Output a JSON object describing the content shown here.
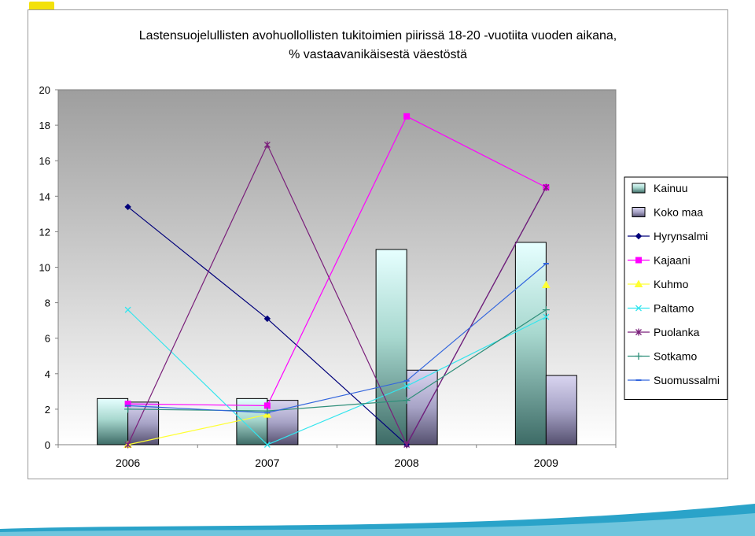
{
  "chart_data": {
    "type": "bar",
    "title_line1": "Lastensuojelullisten avohuollollisten tukitoimien piirissä 18-20 -vuotiita vuoden aikana,",
    "title_line2": "% vastaavanikäisestä väestöstä",
    "categories": [
      "2006",
      "2007",
      "2008",
      "2009"
    ],
    "ylim": [
      0,
      20
    ],
    "yticks": [
      0,
      2,
      4,
      6,
      8,
      10,
      12,
      14,
      16,
      18,
      20
    ],
    "legend_position": "right",
    "bar_series": [
      {
        "name": "Kainuu",
        "values": [
          2.6,
          2.6,
          11.0,
          11.4
        ]
      },
      {
        "name": "Koko maa",
        "values": [
          2.4,
          2.5,
          4.2,
          3.9
        ]
      }
    ],
    "line_series": [
      {
        "name": "Hyrynsalmi",
        "color": "#00007a",
        "marker": "diamond",
        "values": [
          13.4,
          7.1,
          0.0,
          14.5
        ]
      },
      {
        "name": "Kajaani",
        "color": "#ff00ff",
        "marker": "square",
        "values": [
          2.3,
          2.2,
          18.5,
          14.5
        ]
      },
      {
        "name": "Kuhmo",
        "color": "#ffff33",
        "marker": "triangle",
        "values": [
          0.0,
          1.7,
          null,
          9.0
        ]
      },
      {
        "name": "Paltamo",
        "color": "#33e5ee",
        "marker": "x",
        "values": [
          7.6,
          0.0,
          3.3,
          7.2
        ]
      },
      {
        "name": "Puolanka",
        "color": "#7a1f7a",
        "marker": "star",
        "values": [
          0.0,
          16.9,
          0.0,
          14.5
        ]
      },
      {
        "name": "Sotkamo",
        "color": "#2f8f7a",
        "marker": "plus",
        "values": [
          2.0,
          1.9,
          2.5,
          7.6
        ]
      },
      {
        "name": "Suomussalmi",
        "color": "#3366dd",
        "marker": "dash",
        "values": [
          2.2,
          1.8,
          3.6,
          10.2
        ]
      }
    ],
    "grid": false
  }
}
